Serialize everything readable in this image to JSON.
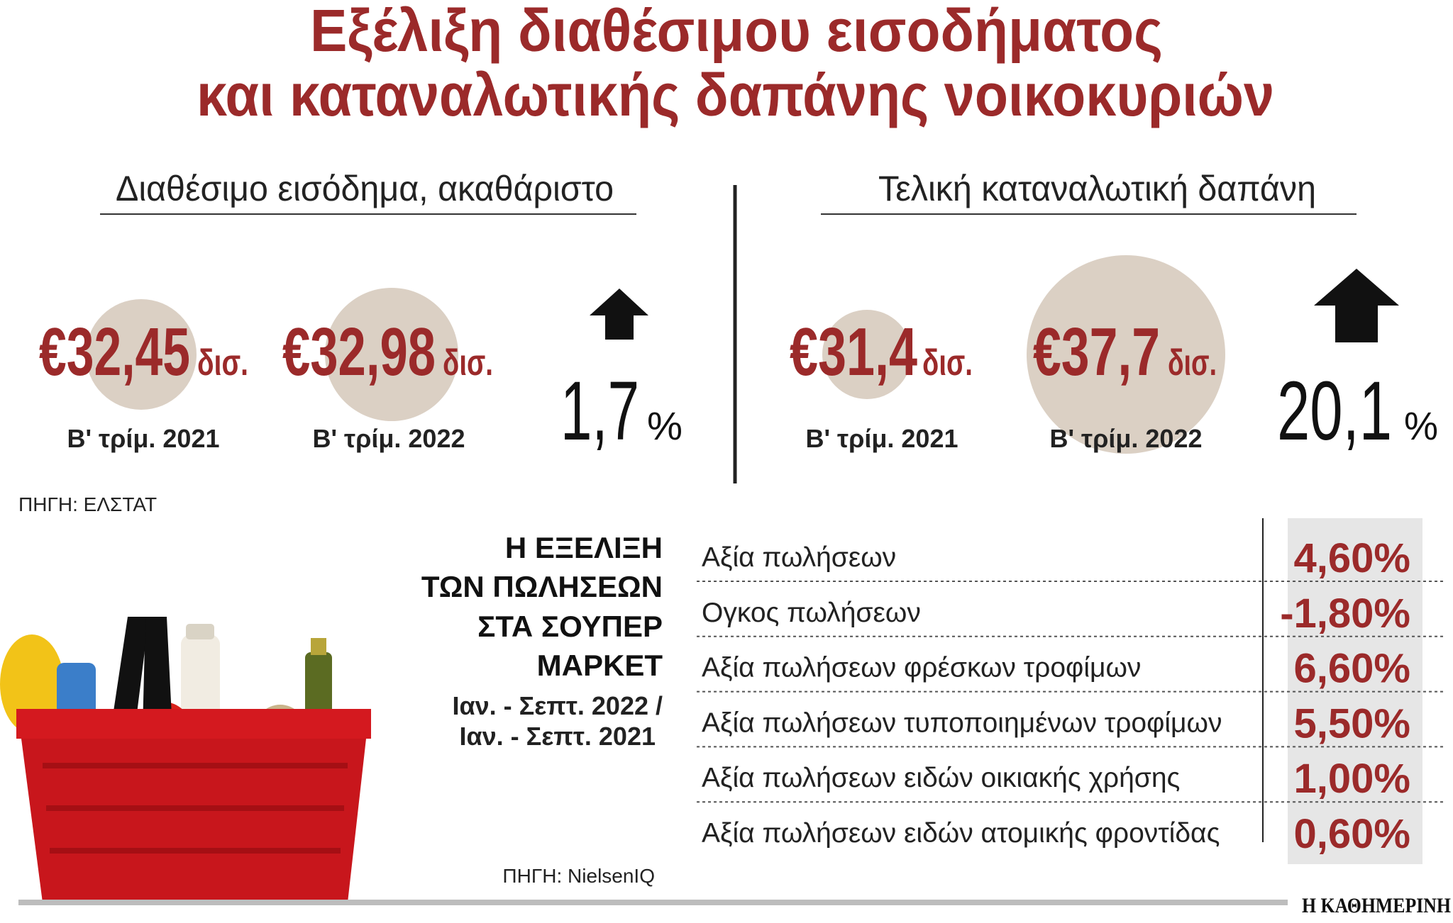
{
  "header": {
    "title_line1": "Εξέλιξη διαθέσιμου εισοδήματος",
    "title_line2": "και καταναλωτικής δαπάνης νοικοκυριών"
  },
  "income": {
    "title": "Διαθέσιμο εισόδημα, ακαθάριστο",
    "items": [
      {
        "value": "€32,45",
        "unit": "δισ.",
        "period": "Β' τρίμ. 2021"
      },
      {
        "value": "€32,98",
        "unit": "δισ.",
        "period": "Β' τρίμ. 2022"
      }
    ],
    "change": "1,7",
    "change_unit": "%"
  },
  "consumption": {
    "title": "Τελική καταναλωτική δαπάνη",
    "items": [
      {
        "value": "€31,4",
        "unit": "δισ.",
        "period": "Β' τρίμ. 2021"
      },
      {
        "value": "€37,7",
        "unit": "δισ.",
        "period": "Β' τρίμ. 2022"
      }
    ],
    "change": "20,1",
    "change_unit": "%"
  },
  "source_top": "ΠΗΓΗ: ΕΛΣΤΑΤ",
  "supermarket": {
    "title_lines": [
      "Η ΕΞΕΛΙΞΗ",
      "ΤΩΝ ΠΩΛΗΣΕΩΝ",
      "ΣΤΑ ΣΟΥΠΕΡ",
      "ΜΑΡΚΕΤ"
    ],
    "period_lines": [
      "Ιαν. - Σεπτ. 2022 /",
      "Ιαν. -  Σεπτ. 2021"
    ],
    "rows": [
      {
        "label": "Αξία πωλήσεων",
        "value": "4,60%"
      },
      {
        "label": "Ογκος πωλήσεων",
        "value": "-1,80%"
      },
      {
        "label": "Αξία πωλήσεων φρέσκων τροφίμων",
        "value": "6,60%"
      },
      {
        "label": "Αξία πωλήσεων τυποποιημένων τροφίμων",
        "value": "5,50%"
      },
      {
        "label": "Αξία πωλήσεων ειδών οικιακής χρήσης",
        "value": "1,00%"
      },
      {
        "label": "Αξία πωλήσεων ειδών ατομικής φροντίδας",
        "value": "0,60%"
      }
    ],
    "source": "ΠΗΓΗ: NielsenIQ"
  },
  "footer": "Η ΚΑΘΗΜΕΡΙΝΗ"
}
